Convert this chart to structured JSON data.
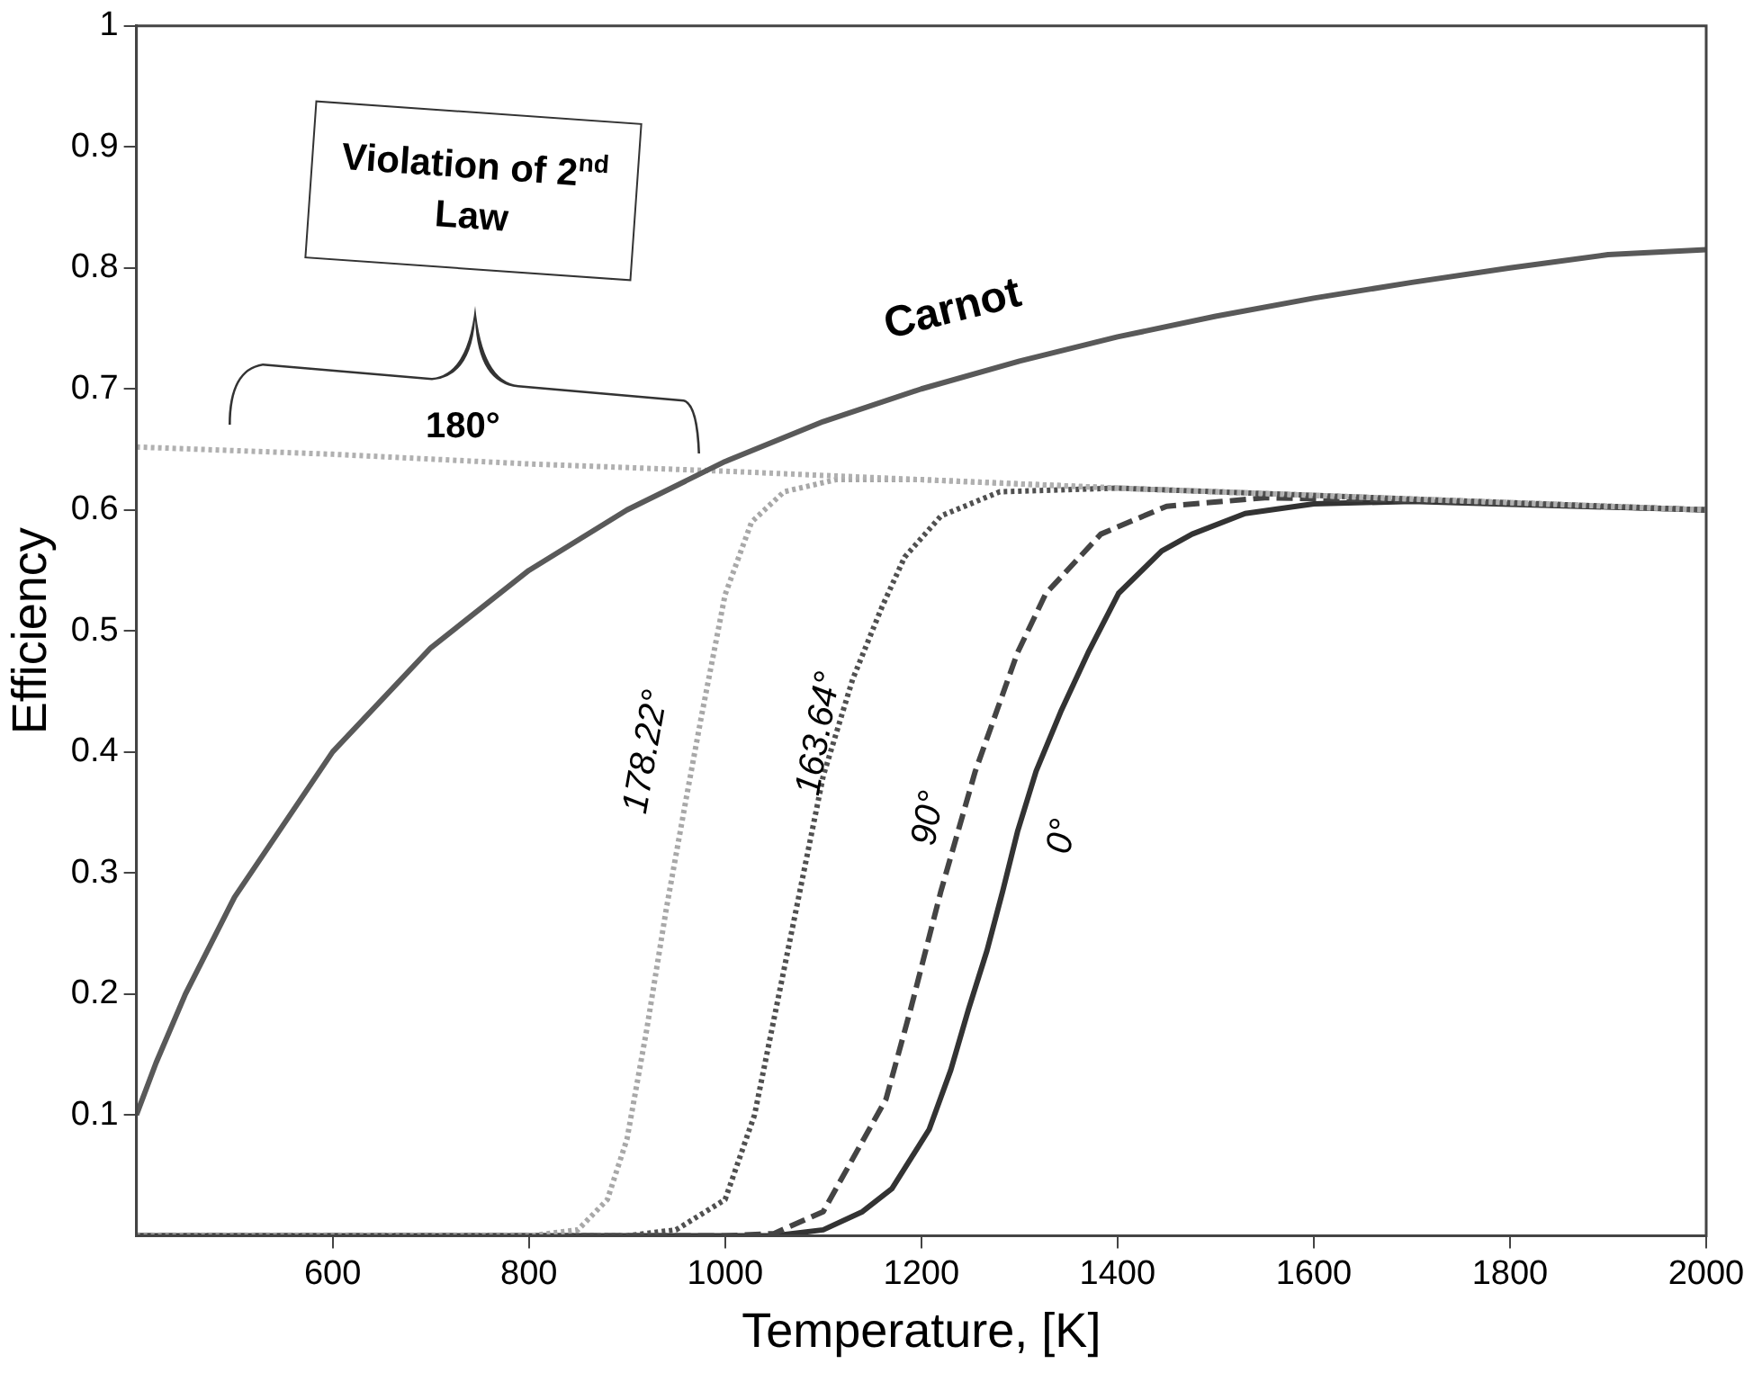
{
  "chart_data": {
    "type": "line",
    "xlabel": "Temperature, [K]",
    "ylabel": "Efficiency",
    "xlim": [
      400,
      2000
    ],
    "xticks": [
      600,
      800,
      1000,
      1200,
      1400,
      1600,
      1800,
      2000
    ],
    "ylim": [
      0,
      1
    ],
    "yticks": [
      0.1,
      0.2,
      0.3,
      0.4,
      0.5,
      0.6,
      0.7,
      0.8,
      0.9,
      1
    ],
    "grid": false,
    "legend": false,
    "marker": "none",
    "annotations": [
      "Violation of 2$^{nd}$ Law"
    ],
    "series": [
      {
        "name": "Carnot",
        "color": "#595959",
        "line_style": "solid",
        "x": [
          400,
          420,
          450,
          500,
          600,
          700,
          800,
          900,
          1000,
          1100,
          1200,
          1300,
          1400,
          1500,
          1600,
          1700,
          1800,
          1900,
          2000
        ],
        "values": [
          0.1,
          0.143,
          0.2,
          0.28,
          0.4,
          0.486,
          0.55,
          0.6,
          0.64,
          0.673,
          0.7,
          0.723,
          0.743,
          0.76,
          0.775,
          0.788,
          0.8,
          0.811,
          0.815
        ]
      },
      {
        "name": "180°",
        "color": "#b0b0b0",
        "line_style": "dotted",
        "x": [
          400,
          600,
          800,
          1000,
          1200,
          1400,
          1600,
          1800,
          2000
        ],
        "values": [
          0.652,
          0.646,
          0.638,
          0.632,
          0.625,
          0.618,
          0.612,
          0.606,
          0.6
        ]
      },
      {
        "name": "178.22°",
        "color": "#a8a8a8",
        "line_style": "dotted",
        "x": [
          400,
          800,
          850,
          880,
          900,
          920,
          940,
          960,
          976,
          1000,
          1027,
          1060,
          1113,
          1200,
          1400,
          1600,
          1800,
          2000
        ],
        "values": [
          0,
          0,
          0.005,
          0.03,
          0.08,
          0.17,
          0.27,
          0.36,
          0.43,
          0.53,
          0.59,
          0.615,
          0.625,
          0.625,
          0.618,
          0.612,
          0.606,
          0.6
        ]
      },
      {
        "name": "163.64°",
        "color": "#505050",
        "line_style": "dotted",
        "x": [
          400,
          900,
          950,
          1000,
          1030,
          1060,
          1080,
          1100,
          1130,
          1160,
          1183,
          1220,
          1280,
          1400,
          1600,
          1800,
          2000
        ],
        "values": [
          0,
          0,
          0.005,
          0.03,
          0.1,
          0.22,
          0.3,
          0.38,
          0.46,
          0.52,
          0.561,
          0.595,
          0.615,
          0.618,
          0.612,
          0.606,
          0.6
        ]
      },
      {
        "name": "90°",
        "color": "#444444",
        "line_style": "dashed",
        "x": [
          400,
          1000,
          1050,
          1100,
          1164,
          1189,
          1220,
          1255,
          1298,
          1327,
          1383,
          1450,
          1550,
          1700,
          2000
        ],
        "values": [
          0,
          0,
          0.002,
          0.02,
          0.113,
          0.187,
          0.285,
          0.384,
          0.482,
          0.531,
          0.58,
          0.603,
          0.61,
          0.608,
          0.6
        ]
      },
      {
        "name": "0°",
        "color": "#333333",
        "line_style": "solid",
        "x": [
          400,
          1050,
          1100,
          1140,
          1170,
          1208,
          1230,
          1248,
          1267,
          1283,
          1298,
          1317,
          1342,
          1370,
          1401,
          1445,
          1476,
          1530,
          1600,
          1700,
          2000
        ],
        "values": [
          0,
          0,
          0.005,
          0.02,
          0.039,
          0.088,
          0.137,
          0.187,
          0.236,
          0.285,
          0.334,
          0.384,
          0.433,
          0.482,
          0.531,
          0.566,
          0.58,
          0.597,
          0.605,
          0.607,
          0.6
        ]
      }
    ]
  }
}
